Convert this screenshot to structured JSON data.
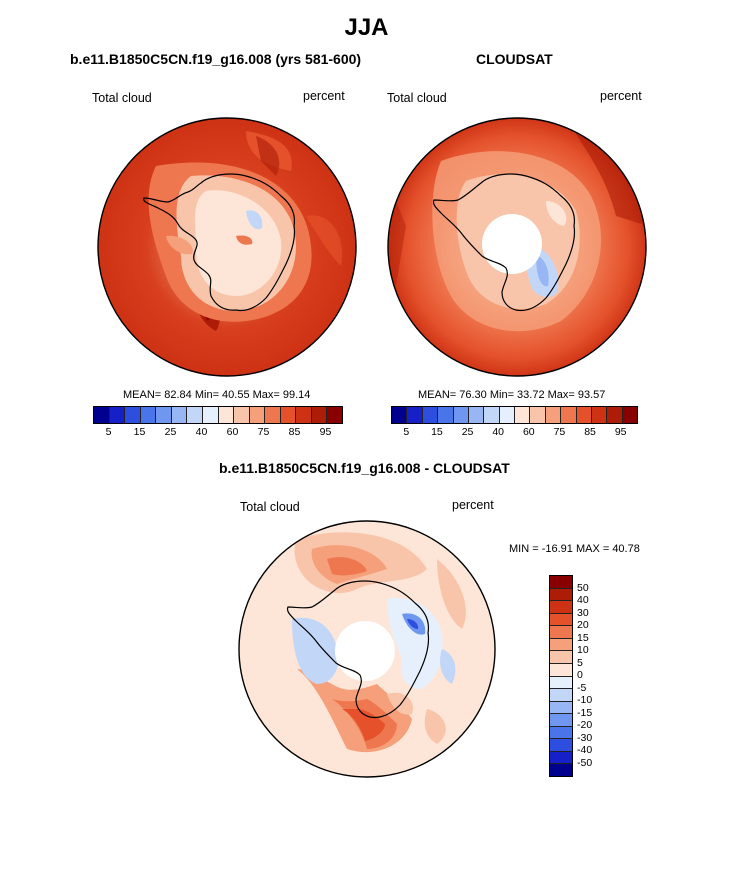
{
  "title": "JJA",
  "panels": {
    "left": {
      "title": "b.e11.B1850C5CN.f19_g16.008 (yrs 581-600)",
      "label_left": "Total cloud",
      "label_right": "percent",
      "stats": "MEAN=  82.84  Min=  40.55  Max=  99.14"
    },
    "right": {
      "title": "CLOUDSAT",
      "label_left": "Total cloud",
      "label_right": "percent",
      "stats": "MEAN=  76.30  Min=  33.72  Max=  93.57"
    },
    "bottom": {
      "title": "b.e11.B1850C5CN.f19_g16.008 - CLOUDSAT",
      "label_left": "Total cloud",
      "label_right": "percent",
      "minmax": "MIN = -16.91 MAX =  40.78"
    }
  },
  "colorbar_top": {
    "colors": [
      "#00008f",
      "#1520c8",
      "#2e4ee0",
      "#4a75ea",
      "#6f97f0",
      "#98b6f4",
      "#c2d6f7",
      "#e6f0fc",
      "#fde6d8",
      "#f9c5aa",
      "#f5a07a",
      "#ef774f",
      "#e4512b",
      "#cd3214",
      "#ac1c06",
      "#880000"
    ],
    "tick_labels": [
      "5",
      "15",
      "25",
      "40",
      "60",
      "75",
      "85",
      "95"
    ]
  },
  "colorbar_diff": {
    "colors": [
      "#880000",
      "#ac1c06",
      "#cd3214",
      "#e4512b",
      "#ef774f",
      "#f5a07a",
      "#f9c5aa",
      "#fde6d8",
      "#e6f0fc",
      "#c2d6f7",
      "#98b6f4",
      "#6f97f0",
      "#4a75ea",
      "#2e4ee0",
      "#1520c8",
      "#00008f"
    ],
    "tick_labels": [
      "50",
      "40",
      "30",
      "20",
      "15",
      "10",
      "5",
      "0",
      "-5",
      "-10",
      "-15",
      "-20",
      "-30",
      "-40",
      "-50"
    ]
  }
}
